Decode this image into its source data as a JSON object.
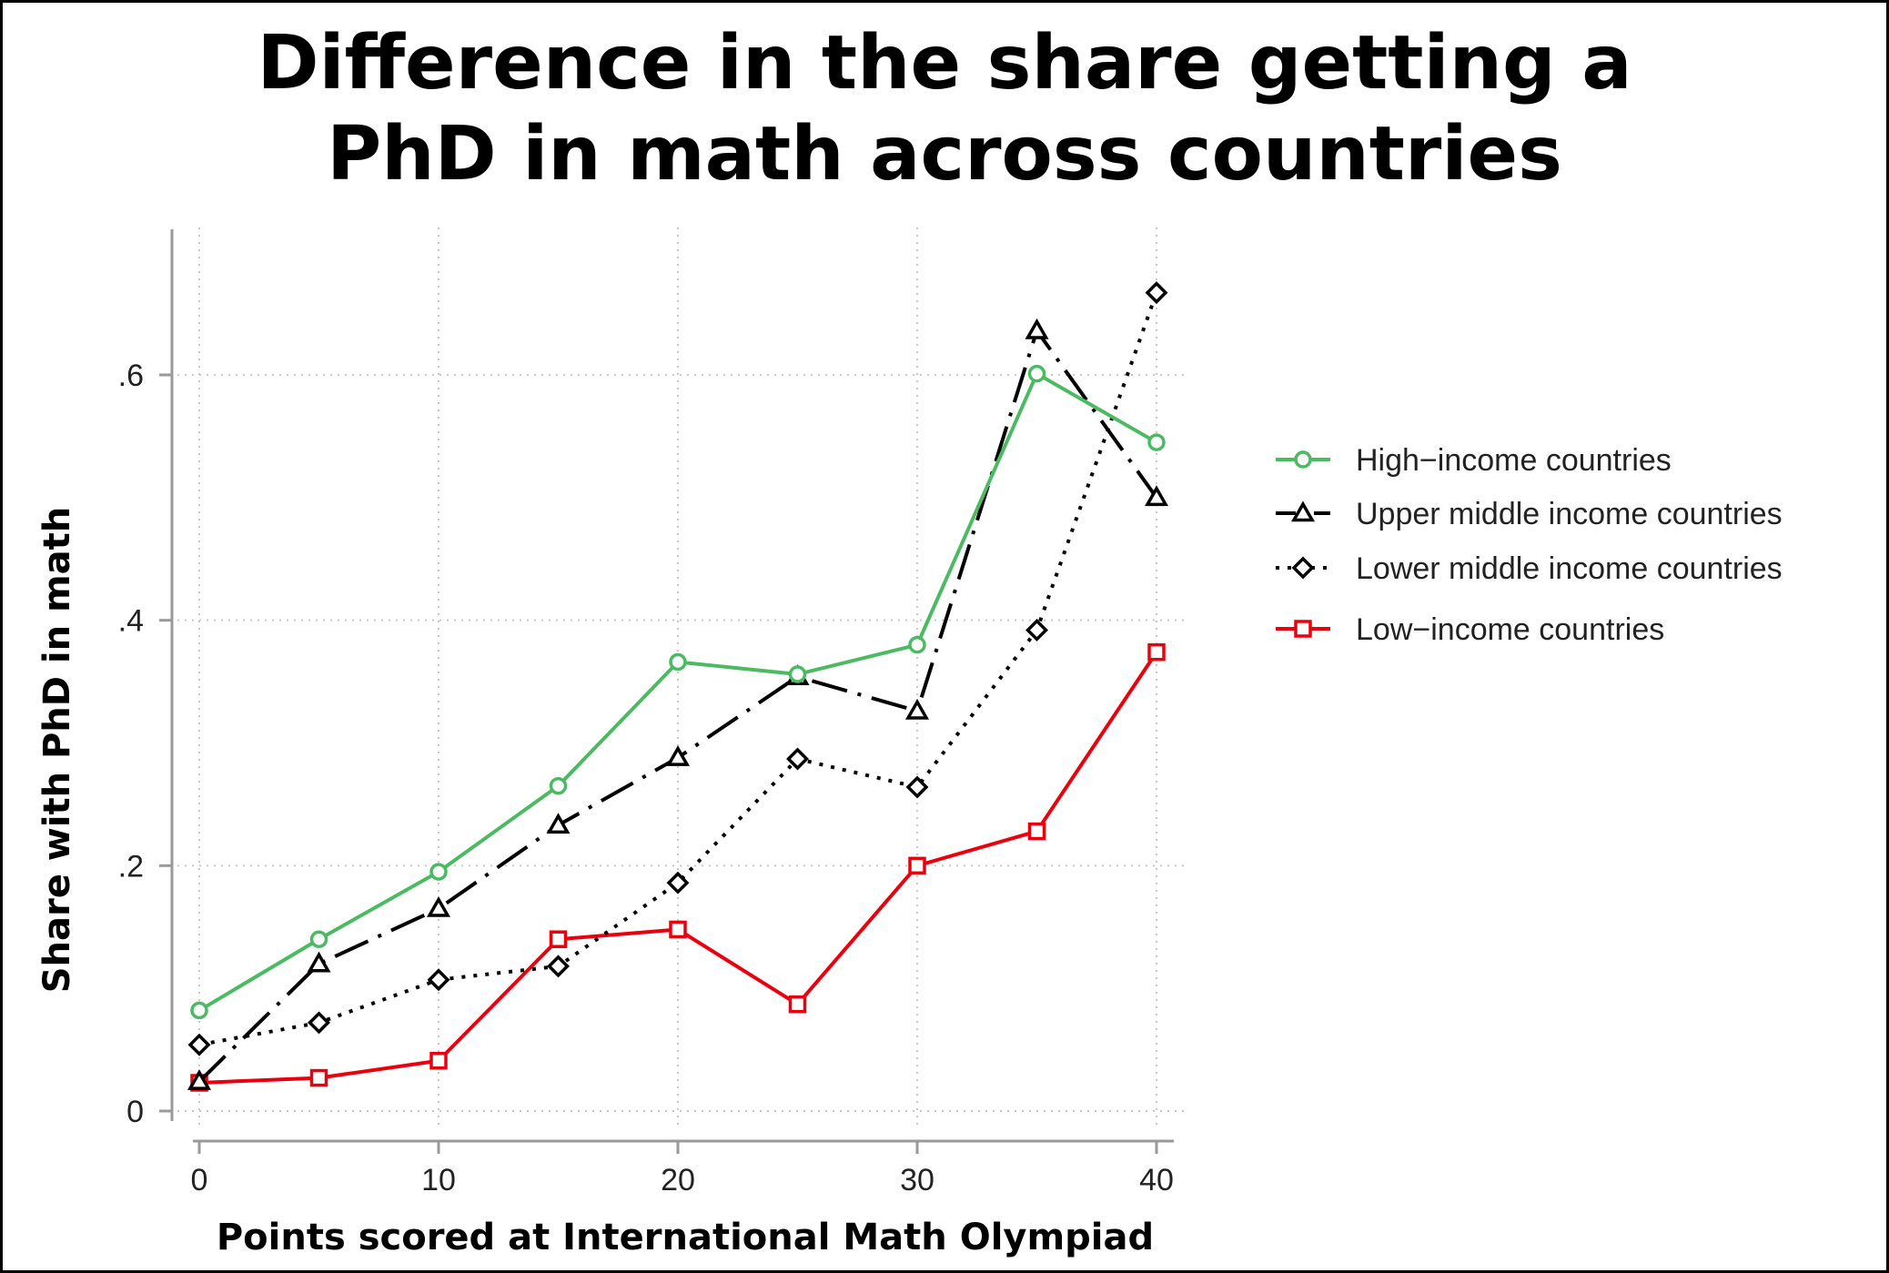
{
  "chart_data": {
    "type": "line",
    "title_lines": [
      "Difference in the share getting a",
      "PhD in math across countries"
    ],
    "xlabel": "Points scored at International Math Olympiad",
    "ylabel": "Share with PhD in math",
    "x": [
      0,
      5,
      10,
      15,
      20,
      25,
      30,
      35,
      40
    ],
    "xlim": [
      0,
      40
    ],
    "ylim": [
      0,
      0.6
    ],
    "xticks": [
      0,
      10,
      20,
      30,
      40
    ],
    "xtick_labels": [
      "0",
      "10",
      "20",
      "30",
      "40"
    ],
    "yticks": [
      0,
      0.2,
      0.4,
      0.6
    ],
    "ytick_labels": [
      "0",
      ".2",
      ".4",
      ".6"
    ],
    "grid": true,
    "legend_position": "right",
    "series": [
      {
        "name": "High−income countries",
        "color": "#4cb963",
        "marker": "circle",
        "dash": "solid",
        "values": [
          0.082,
          0.14,
          0.195,
          0.265,
          0.366,
          0.356,
          0.38,
          0.601,
          0.545
        ]
      },
      {
        "name": "Upper middle income countries",
        "color": "#000000",
        "marker": "triangle",
        "dash": "dashdot",
        "values": [
          0.024,
          0.12,
          0.165,
          0.233,
          0.288,
          0.354,
          0.326,
          0.636,
          0.5
        ]
      },
      {
        "name": "Lower middle income countries",
        "color": "#000000",
        "marker": "diamond",
        "dash": "dot",
        "values": [
          0.054,
          0.072,
          0.107,
          0.118,
          0.186,
          0.287,
          0.264,
          0.392,
          0.667
        ]
      },
      {
        "name": "Low−income countries",
        "color": "#e8000f",
        "marker": "square",
        "dash": "solid",
        "values": [
          0.023,
          0.027,
          0.041,
          0.14,
          0.148,
          0.087,
          0.2,
          0.228,
          0.374
        ]
      }
    ]
  }
}
